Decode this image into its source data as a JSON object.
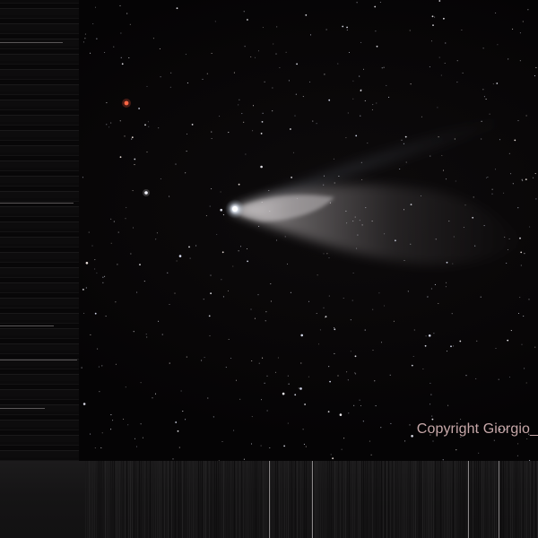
{
  "photo": {
    "subject_icon": "comet-icon",
    "watermark": "Copyright Giorgio_",
    "colors": {
      "sky": "#060506",
      "comet_head": "#f4f8ff",
      "comet_tail": "#c9c6c7",
      "star": "#e8e6ea",
      "red_star": "#ff5a3a",
      "watermark": "#c6a7a8"
    }
  }
}
